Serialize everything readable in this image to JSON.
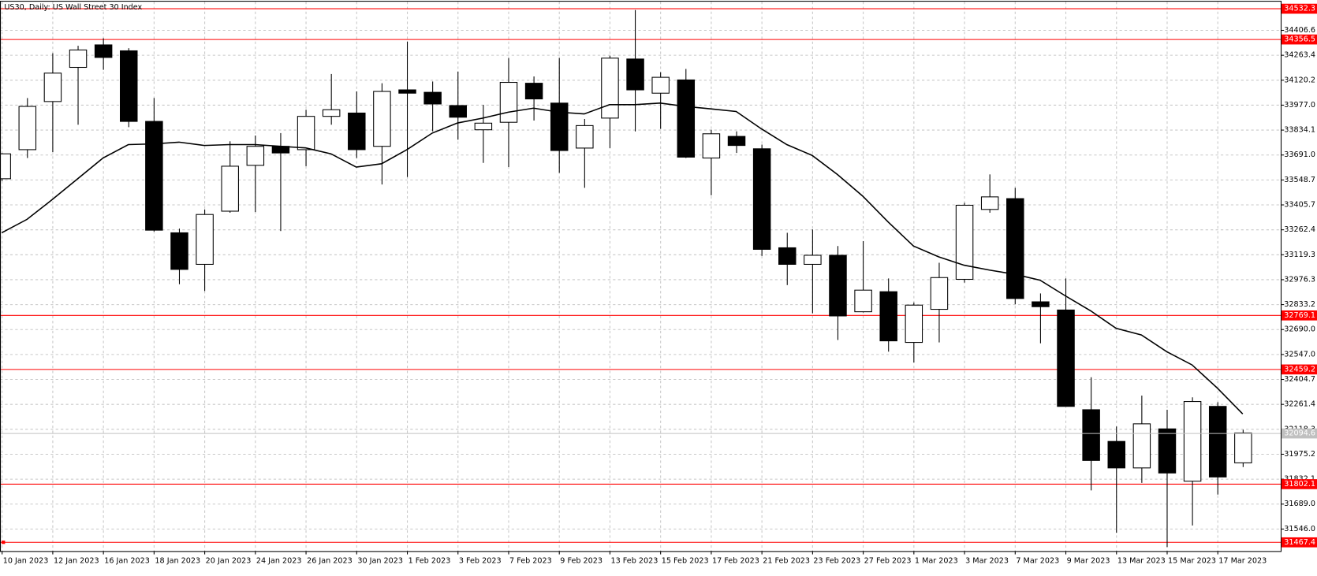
{
  "chart_data": {
    "type": "candlestick",
    "title": "US30, Daily: US Wall Street 30 Index",
    "categories": [
      "10 Jan 2023",
      null,
      "12 Jan 2023",
      null,
      "16 Jan 2023",
      null,
      "18 Jan 2023",
      null,
      "20 Jan 2023",
      null,
      "24 Jan 2023",
      null,
      "26 Jan 2023",
      null,
      "30 Jan 2023",
      null,
      "1 Feb 2023",
      null,
      "3 Feb 2023",
      null,
      "7 Feb 2023",
      null,
      "9 Feb 2023",
      null,
      "13 Feb 2023",
      null,
      "15 Feb 2023",
      null,
      "17 Feb 2023",
      null,
      "21 Feb 2023",
      null,
      "23 Feb 2023",
      null,
      "27 Feb 2023",
      null,
      "1 Mar 2023",
      null,
      "3 Mar 2023",
      null,
      "7 Mar 2023",
      null,
      "9 Mar 2023",
      null,
      "13 Mar 2023",
      null,
      "15 Mar 2023",
      null,
      "17 Mar 2023",
      null
    ],
    "ohlc": {
      "open": [
        33553,
        33720,
        33996,
        34192,
        34321,
        34287,
        33882,
        33243,
        33062,
        33367,
        33630,
        33739,
        33720,
        33911,
        33930,
        33739,
        34063,
        34049,
        33973,
        33834,
        33877,
        34101,
        33987,
        33729,
        33901,
        34240,
        34044,
        34120,
        33672,
        33796,
        33725,
        33157,
        33062,
        33114,
        32790,
        32905,
        32614,
        32804,
        32976,
        33377,
        33439,
        32847,
        32800,
        32228,
        32046,
        31894,
        32118,
        31818,
        32247,
        31923
      ],
      "high": [
        33700,
        34016,
        34273,
        34316,
        34359,
        34302,
        34016,
        33267,
        33377,
        33768,
        33801,
        33815,
        33949,
        34154,
        34054,
        34101,
        34340,
        34111,
        34168,
        33977,
        34245,
        34140,
        34245,
        33896,
        34259,
        34521,
        34164,
        34183,
        33834,
        33825,
        33749,
        33243,
        33262,
        33167,
        33195,
        32981,
        32843,
        33071,
        33415,
        33578,
        33501,
        32895,
        32981,
        32414,
        32132,
        32309,
        32228,
        32299,
        32271,
        32113
      ],
      "low": [
        33540,
        33672,
        33706,
        33863,
        34178,
        33849,
        33250,
        32948,
        32909,
        33358,
        33362,
        33253,
        33625,
        33863,
        33672,
        33520,
        33563,
        33825,
        33777,
        33644,
        33620,
        33887,
        33587,
        33501,
        33729,
        33825,
        33839,
        33672,
        33458,
        33701,
        33110,
        32943,
        32781,
        32628,
        32786,
        32561,
        32499,
        32614,
        32957,
        33358,
        32833,
        32609,
        32247,
        31765,
        31522,
        31808,
        31440,
        31564,
        31741,
        31899
      ],
      "close": [
        33696,
        33968,
        34159,
        34292,
        34249,
        33882,
        33258,
        33033,
        33348,
        33625,
        33739,
        33701,
        33911,
        33949,
        33720,
        34054,
        34044,
        33982,
        33906,
        33872,
        34106,
        34011,
        33715,
        33858,
        34245,
        34063,
        34135,
        33677,
        33811,
        33744,
        33148,
        33062,
        33114,
        32766,
        32914,
        32623,
        32828,
        32986,
        33401,
        33449,
        32866,
        32819,
        32247,
        31937,
        31894,
        32147,
        31865,
        32275,
        31842,
        32094.6
      ]
    },
    "ma": {
      "color": "#000000",
      "values": [
        33243,
        33320,
        33434,
        33553,
        33672,
        33749,
        33753,
        33763,
        33744,
        33749,
        33749,
        33739,
        33730,
        33696,
        33620,
        33639,
        33720,
        33815,
        33873,
        33901,
        33935,
        33958,
        33935,
        33925,
        33978,
        33978,
        33987,
        33968,
        33954,
        33939,
        33839,
        33749,
        33687,
        33577,
        33453,
        33305,
        33167,
        33105,
        33057,
        33029,
        33005,
        32971,
        32881,
        32795,
        32695,
        32657,
        32561,
        32485,
        32352,
        32204
      ]
    },
    "levels": [
      34532.3,
      34356.5,
      32769.1,
      32459.2,
      31802.1,
      31467.4
    ],
    "level_color": "#ff0000",
    "ylim": [
      31417,
      34569
    ],
    "yticks": [
      34406.6,
      34263.4,
      34120.2,
      {
        "value": 33977.0,
        "label": "33977.0"
      },
      33834.1,
      {
        "value": 33691.0,
        "label": "33691.0"
      },
      33548.7,
      33405.7,
      33262.4,
      33119.3,
      32976.3,
      32833.2,
      {
        "value": 32690.0,
        "label": "32690.0"
      },
      {
        "value": 32547.0,
        "label": "32547.0"
      },
      32404.7,
      32261.4,
      32118.3,
      31975.2,
      31832.1,
      {
        "value": 31689.0,
        "label": "31689.0"
      },
      {
        "value": 31546.0,
        "label": "31546.0"
      }
    ],
    "grid": true
  }
}
